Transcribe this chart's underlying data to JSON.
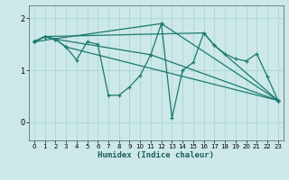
{
  "title": "",
  "xlabel": "Humidex (Indice chaleur)",
  "bg_color": "#cce8e8",
  "grid_color": "#b0d8d8",
  "line_color": "#1a7a6e",
  "spine_color": "#555555",
  "xlim": [
    -0.5,
    23.5
  ],
  "ylim": [
    -0.35,
    2.25
  ],
  "yticks": [
    0,
    1,
    2
  ],
  "xticks": [
    0,
    1,
    2,
    3,
    4,
    5,
    6,
    7,
    8,
    9,
    10,
    11,
    12,
    13,
    14,
    15,
    16,
    17,
    18,
    19,
    20,
    21,
    22,
    23
  ],
  "lines": [
    {
      "x": [
        0,
        1,
        2,
        3,
        4,
        5,
        6,
        7,
        8,
        9,
        10,
        11,
        12,
        13,
        14,
        15,
        16,
        17,
        18,
        19,
        20,
        21,
        22,
        23
      ],
      "y": [
        1.55,
        1.65,
        1.6,
        1.45,
        1.2,
        1.55,
        1.5,
        0.52,
        0.52,
        0.68,
        0.9,
        1.3,
        1.9,
        0.08,
        1.0,
        1.15,
        1.72,
        1.48,
        1.32,
        1.22,
        1.18,
        1.32,
        0.88,
        0.42
      ]
    },
    {
      "x": [
        0,
        1,
        2,
        3,
        23
      ],
      "y": [
        1.55,
        1.65,
        1.6,
        1.45,
        0.42
      ]
    },
    {
      "x": [
        0,
        1,
        2,
        11,
        23
      ],
      "y": [
        1.55,
        1.65,
        1.6,
        1.3,
        0.42
      ]
    },
    {
      "x": [
        0,
        1,
        16,
        17,
        23
      ],
      "y": [
        1.55,
        1.65,
        1.72,
        1.48,
        0.42
      ]
    },
    {
      "x": [
        0,
        12,
        23
      ],
      "y": [
        1.55,
        1.9,
        0.42
      ]
    }
  ]
}
